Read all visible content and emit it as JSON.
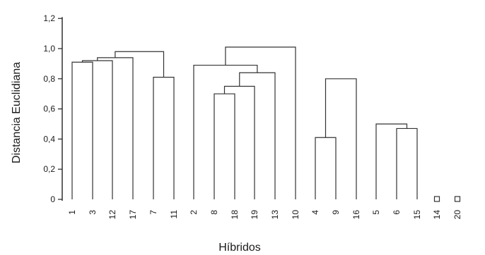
{
  "chart_data": {
    "type": "dendrogram",
    "xlabel": "Híbridos",
    "ylabel": "Distancia Euclidiana",
    "ylim": [
      0,
      1.2
    ],
    "yticks": [
      {
        "value": 0,
        "label": "0"
      },
      {
        "value": 0.2,
        "label": "0,2"
      },
      {
        "value": 0.4,
        "label": "0,4"
      },
      {
        "value": 0.6,
        "label": "0,6"
      },
      {
        "value": 0.8,
        "label": "0,8"
      },
      {
        "value": 1.0,
        "label": "1,0"
      },
      {
        "value": 1.2,
        "label": "1,2"
      }
    ],
    "leaves": [
      "1",
      "3",
      "12",
      "17",
      "7",
      "11",
      "2",
      "8",
      "18",
      "19",
      "13",
      "10",
      "4",
      "9",
      "16",
      "5",
      "6",
      "15",
      "14",
      "20"
    ],
    "merges": [
      {
        "left": "1",
        "right": "3",
        "height": 0.91
      },
      {
        "left": "1-3",
        "right": "12",
        "height": 0.92
      },
      {
        "left": "1-3-12",
        "right": "17",
        "height": 0.94
      },
      {
        "left": "7",
        "right": "11",
        "height": 0.81
      },
      {
        "left": "1-3-12-17",
        "right": "7-11",
        "height": 0.98
      },
      {
        "left": "8",
        "right": "18",
        "height": 0.7
      },
      {
        "left": "8-18",
        "right": "19",
        "height": 0.75
      },
      {
        "left": "8-18-19",
        "right": "13",
        "height": 0.84
      },
      {
        "left": "2",
        "right": "8-18-19-13",
        "height": 0.89
      },
      {
        "left": "2-8-18-19-13",
        "right": "10",
        "height": 1.01
      },
      {
        "left": "4",
        "right": "9",
        "height": 0.41
      },
      {
        "left": "4-9",
        "right": "16",
        "height": 0.8
      },
      {
        "left": "6",
        "right": "15",
        "height": 0.47
      },
      {
        "left": "5",
        "right": "6-15",
        "height": 0.5
      }
    ],
    "singletons": [
      "14",
      "20"
    ],
    "grid": false
  }
}
